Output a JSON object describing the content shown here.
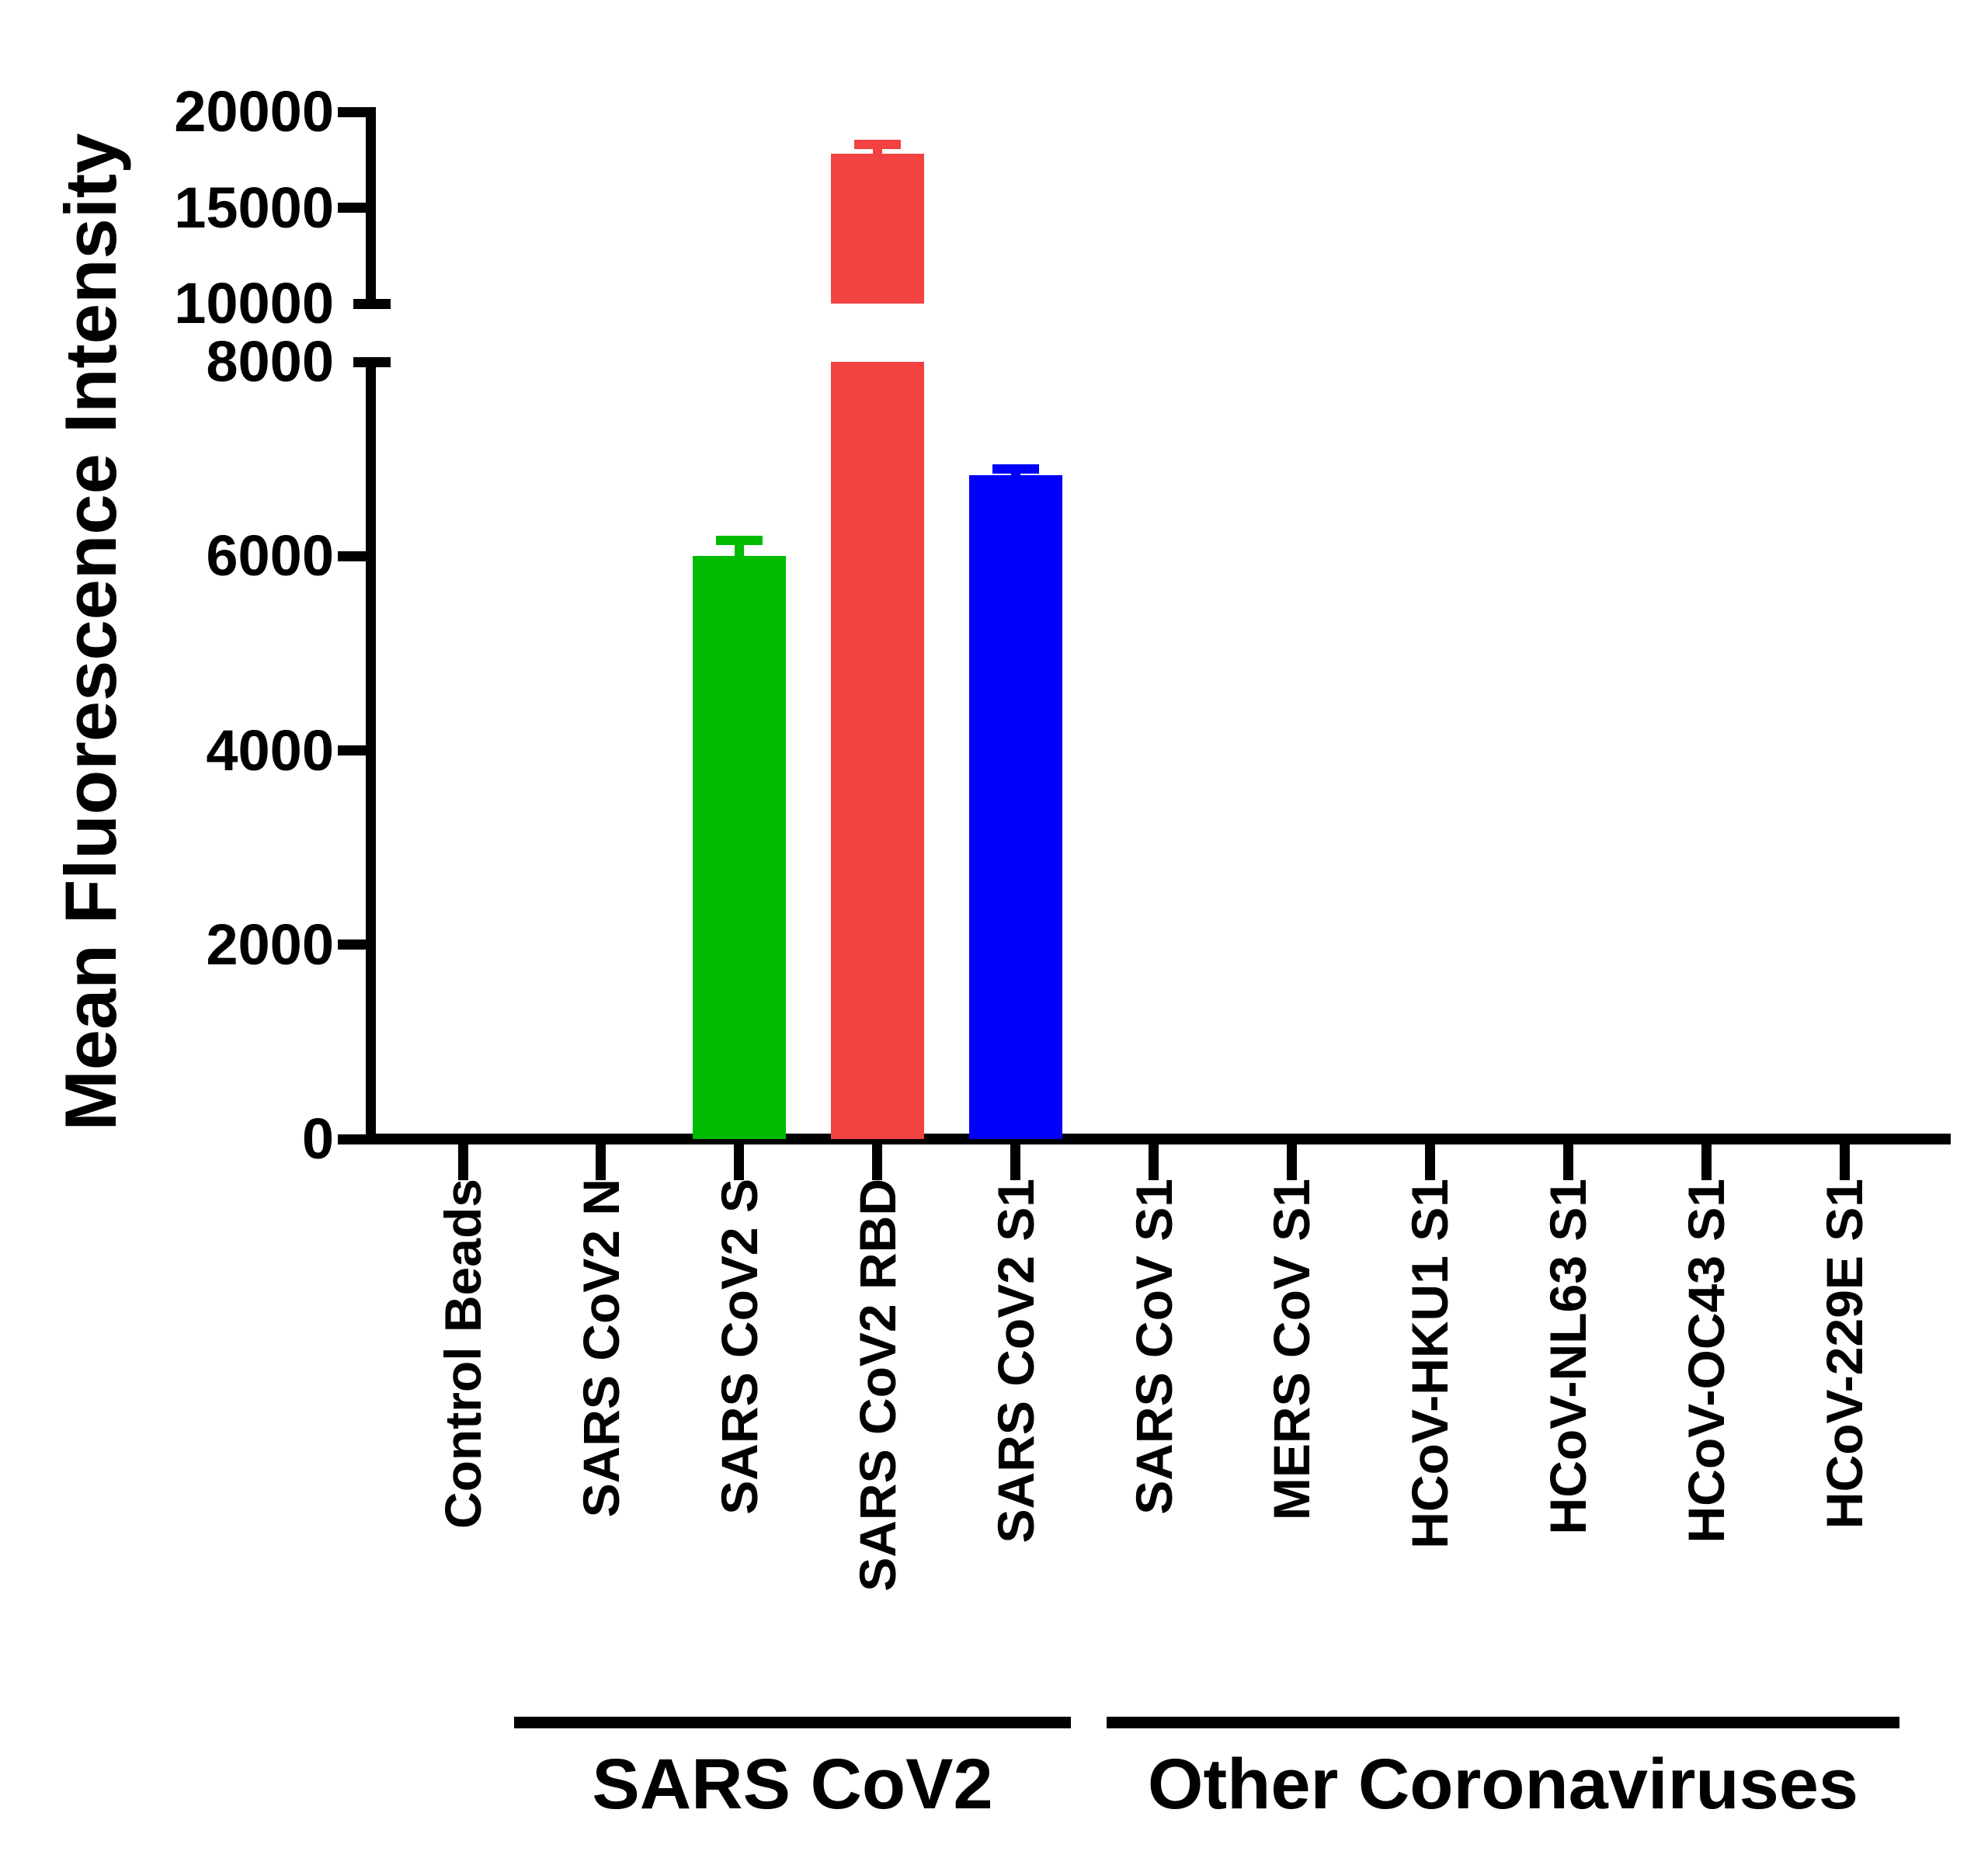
{
  "chart_data": {
    "type": "bar",
    "title": "",
    "ylabel": "Mean Fluorescence Intensity",
    "xlabel": "",
    "categories": [
      "Control Beads",
      "SARS CoV2 N",
      "SARS CoV2 S",
      "SARS CoV2 RBD",
      "SARS CoV2 S1",
      "SARS CoV S1",
      "MERS CoV S1",
      "HCoV-HKU1 S1",
      "HCoV-NL63 S1",
      "HCoV-OC43 S1",
      "HCoV-229E S1"
    ],
    "series": [
      {
        "name": "Mean Fluorescence Intensity",
        "values": [
          0,
          0,
          6000,
          17800,
          6830,
          0,
          0,
          0,
          0,
          0,
          0
        ],
        "errors_plus": [
          0,
          0,
          160,
          480,
          70,
          0,
          0,
          0,
          0,
          0,
          0
        ]
      }
    ],
    "bar_colors": [
      "#000000",
      "#000000",
      "#00BC00",
      "#F24242",
      "#0000FA",
      "#000000",
      "#000000",
      "#000000",
      "#000000",
      "#000000",
      "#000000"
    ],
    "axis": {
      "broken_y_axis": true,
      "lower_range": [
        0,
        8000
      ],
      "upper_range": [
        10000,
        20000
      ],
      "lower_ticks": [
        "0",
        "2000",
        "4000",
        "6000",
        "8000"
      ],
      "lower_tick_values": [
        0,
        2000,
        4000,
        6000,
        8000
      ],
      "upper_ticks": [
        "10000",
        "15000",
        "20000"
      ],
      "upper_tick_values": [
        10000,
        15000,
        20000
      ]
    },
    "groups": [
      {
        "label": "SARS CoV2",
        "start_index": 1,
        "end_index": 4
      },
      {
        "label": "Other Coronaviruses",
        "start_index": 5,
        "end_index": 10
      }
    ],
    "grid": false,
    "legend": false,
    "axis_color": "#000000",
    "background_color": "#FFFFFF"
  }
}
